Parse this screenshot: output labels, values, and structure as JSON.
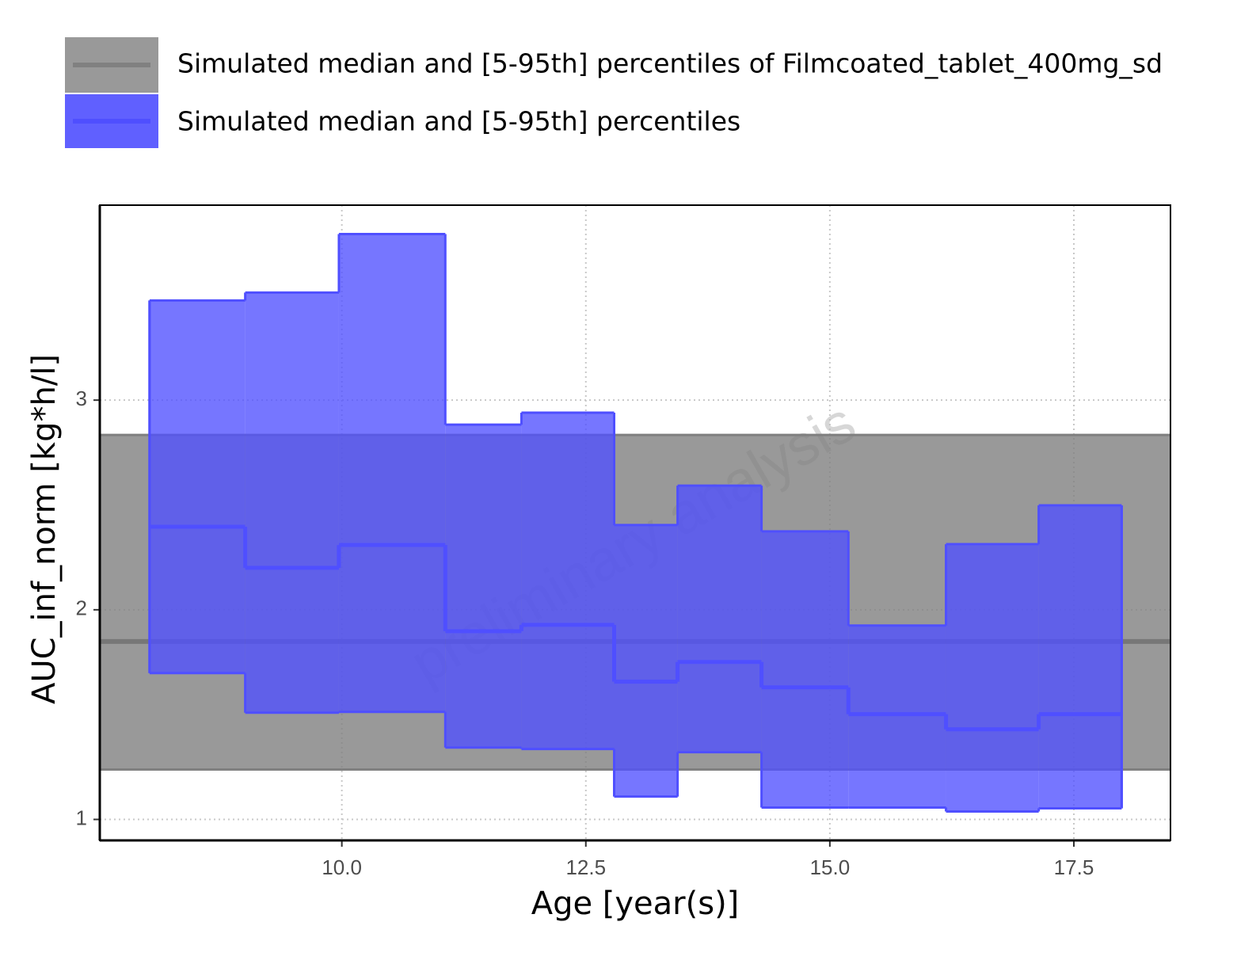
{
  "chart_data": {
    "type": "step",
    "x_label": "Age [year(s)]",
    "y_label": "AUC_inf_norm [kg*h/l]",
    "watermark": "preliminary analysis",
    "xlim": [
      7.52,
      18.49
    ],
    "ylim": [
      0.9,
      3.93
    ],
    "xticks": [
      {
        "value": 10,
        "label": "10.0"
      },
      12.5,
      {
        "value": 15,
        "label": "15.0"
      },
      17.5
    ],
    "yticks": [
      1,
      2,
      3
    ],
    "grid": true,
    "reference": {
      "name": "Simulated median and [5-95th] percentiles of Filmcoated_tablet_400mg_sd",
      "color": "#808080",
      "median": 1.849,
      "lower": 1.238,
      "upper": 2.834
    },
    "bins": [
      8.03,
      9.01,
      9.97,
      11.06,
      11.84,
      12.79,
      13.44,
      14.3,
      15.19,
      16.19,
      17.14,
      17.99
    ],
    "series": [
      {
        "name": "Simulated median and [5-95th] percentiles",
        "color": "#4f4fff",
        "median": [
          2.396,
          2.2,
          2.309,
          1.898,
          1.928,
          1.657,
          1.751,
          1.63,
          1.502,
          1.43,
          1.502
        ],
        "lower": [
          1.698,
          1.509,
          1.513,
          1.343,
          1.336,
          1.109,
          1.321,
          1.057,
          1.057,
          1.038,
          1.053
        ],
        "upper": [
          3.475,
          3.513,
          3.792,
          2.883,
          2.94,
          2.404,
          2.592,
          2.374,
          1.925,
          2.313,
          2.498
        ]
      }
    ]
  }
}
